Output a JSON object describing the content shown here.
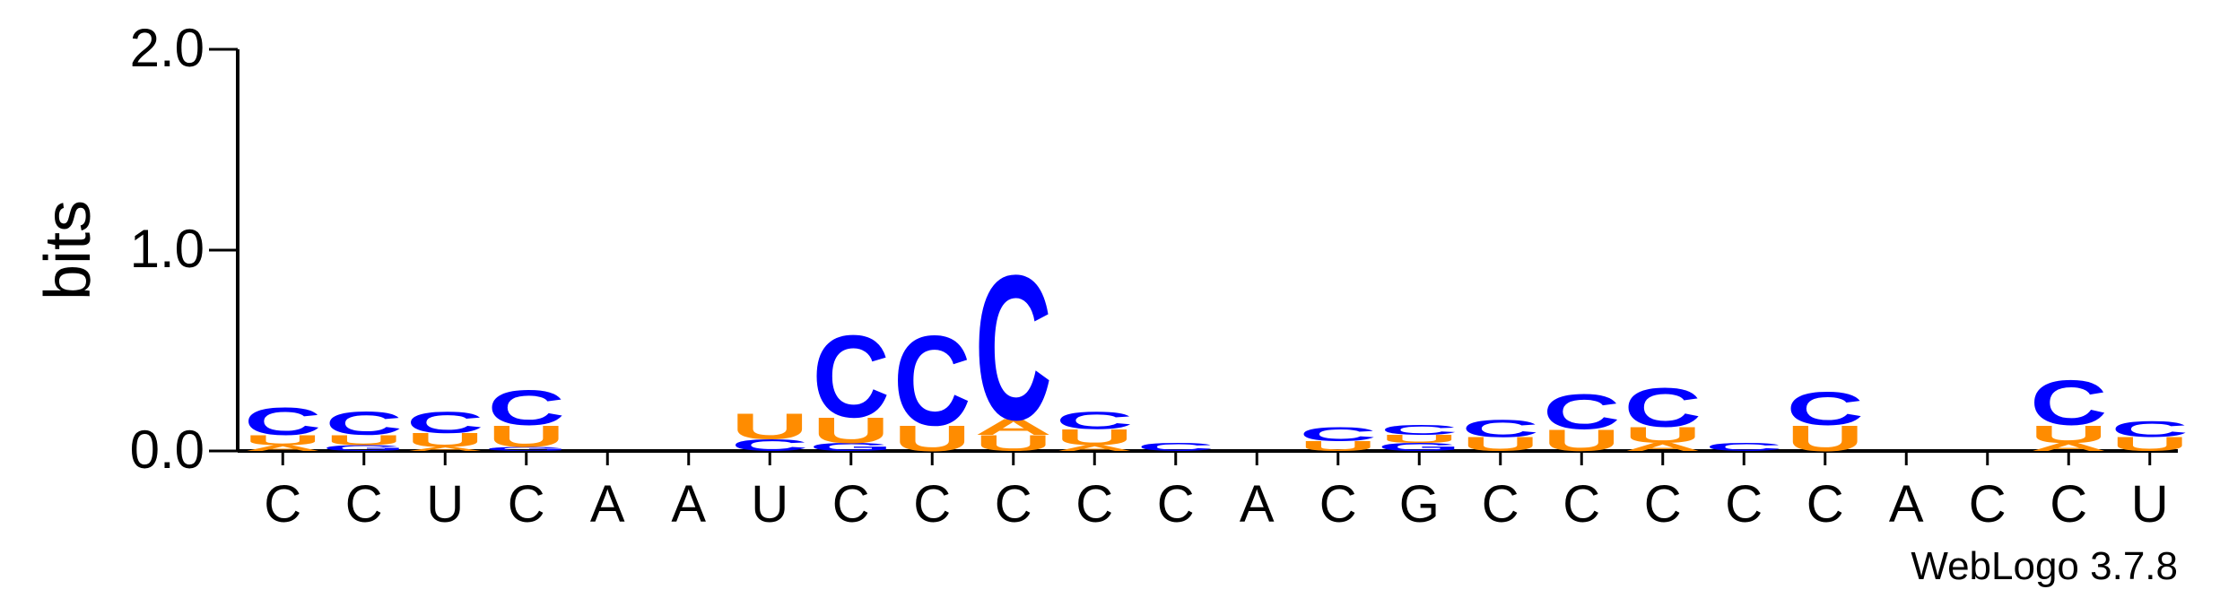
{
  "chart_data": {
    "type": "sequence_logo",
    "ylabel": "bits",
    "ylim": [
      0,
      2
    ],
    "yticks": [
      "0.0",
      "1.0",
      "2.0"
    ],
    "positions": [
      "C",
      "C",
      "U",
      "C",
      "A",
      "A",
      "U",
      "C",
      "C",
      "C",
      "C",
      "C",
      "A",
      "C",
      "G",
      "C",
      "C",
      "C",
      "C",
      "C",
      "A",
      "C",
      "C",
      "U"
    ],
    "colors": {
      "C": "#0000ff",
      "U": "#ff8c00",
      "A": "#ff8c00",
      "G": "#0000ff"
    },
    "stacks": [
      [
        {
          "l": "A",
          "h": 0.03
        },
        {
          "l": "U",
          "h": 0.05
        },
        {
          "l": "C",
          "h": 0.14
        }
      ],
      [
        {
          "l": "G",
          "h": 0.03
        },
        {
          "l": "U",
          "h": 0.05
        },
        {
          "l": "C",
          "h": 0.12
        }
      ],
      [
        {
          "l": "A",
          "h": 0.02
        },
        {
          "l": "U",
          "h": 0.07
        },
        {
          "l": "C",
          "h": 0.11
        }
      ],
      [
        {
          "l": "G",
          "h": 0.02
        },
        {
          "l": "U",
          "h": 0.11
        },
        {
          "l": "C",
          "h": 0.18
        }
      ],
      [],
      [],
      [
        {
          "l": "C",
          "h": 0.06
        },
        {
          "l": "U",
          "h": 0.13
        }
      ],
      [
        {
          "l": "G",
          "h": 0.04
        },
        {
          "l": "U",
          "h": 0.13
        },
        {
          "l": "C",
          "h": 0.42
        }
      ],
      [
        {
          "l": "U",
          "h": 0.13
        },
        {
          "l": "C",
          "h": 0.46
        }
      ],
      [
        {
          "l": "U",
          "h": 0.08
        },
        {
          "l": "A",
          "h": 0.08
        },
        {
          "l": "C",
          "h": 0.74
        }
      ],
      [
        {
          "l": "A",
          "h": 0.03
        },
        {
          "l": "U",
          "h": 0.08
        },
        {
          "l": "C",
          "h": 0.09
        }
      ],
      [
        {
          "l": "C",
          "h": 0.04
        }
      ],
      [],
      [
        {
          "l": "U",
          "h": 0.05
        },
        {
          "l": "C",
          "h": 0.07
        }
      ],
      [
        {
          "l": "G",
          "h": 0.04
        },
        {
          "l": "U",
          "h": 0.04
        },
        {
          "l": "C",
          "h": 0.05
        }
      ],
      [
        {
          "l": "U",
          "h": 0.07
        },
        {
          "l": "C",
          "h": 0.09
        }
      ],
      [
        {
          "l": "U",
          "h": 0.11
        },
        {
          "l": "C",
          "h": 0.18
        }
      ],
      [
        {
          "l": "A",
          "h": 0.04
        },
        {
          "l": "U",
          "h": 0.08
        },
        {
          "l": "C",
          "h": 0.2
        }
      ],
      [
        {
          "l": "C",
          "h": 0.04
        }
      ],
      [
        {
          "l": "U",
          "h": 0.13
        },
        {
          "l": "C",
          "h": 0.17
        }
      ],
      [],
      [],
      [
        {
          "l": "A",
          "h": 0.04
        },
        {
          "l": "U",
          "h": 0.09
        },
        {
          "l": "C",
          "h": 0.23
        }
      ],
      [
        {
          "l": "U",
          "h": 0.07
        },
        {
          "l": "C",
          "h": 0.08
        }
      ]
    ]
  },
  "credit": "WebLogo 3.7.8"
}
